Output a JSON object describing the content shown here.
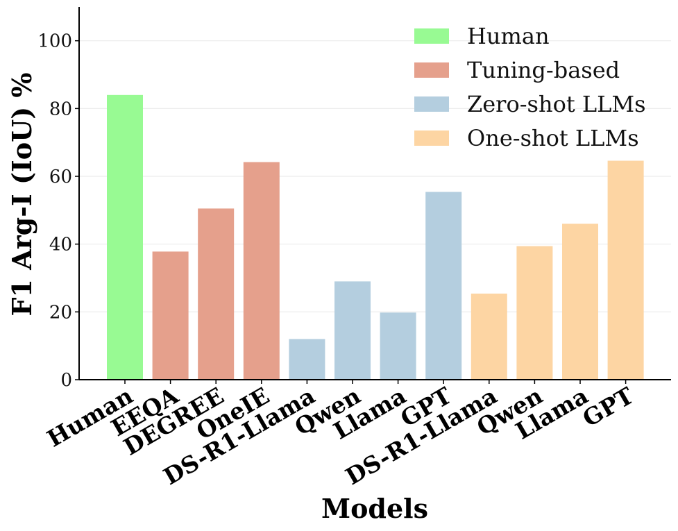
{
  "chart_data": {
    "type": "bar",
    "title": "",
    "xlabel": "Models",
    "ylabel": "F1 Arg-I (IoU) %",
    "ylim": [
      0,
      110
    ],
    "yticks": [
      0,
      20,
      40,
      60,
      80,
      100
    ],
    "categories": [
      "Human",
      "EEQA",
      "DEGREE",
      "OneIE",
      "DS-R1-Llama",
      "Qwen",
      "Llama",
      "GPT",
      "DS-R1-Llama",
      "Qwen",
      "Llama",
      "GPT"
    ],
    "values": [
      84,
      37.8,
      50.5,
      64.2,
      12,
      29,
      19.8,
      55.4,
      25.4,
      39.4,
      46,
      64.6
    ],
    "groups": [
      "Human",
      "Tuning-based",
      "Tuning-based",
      "Tuning-based",
      "Zero-shot LLMs",
      "Zero-shot LLMs",
      "Zero-shot LLMs",
      "Zero-shot LLMs",
      "One-shot LLMs",
      "One-shot LLMs",
      "One-shot LLMs",
      "One-shot LLMs"
    ],
    "legend": [
      {
        "label": "Human",
        "color": "#98fa93"
      },
      {
        "label": "Tuning-based",
        "color": "#e5a08c"
      },
      {
        "label": "Zero-shot LLMs",
        "color": "#b4cedf"
      },
      {
        "label": "One-shot LLMs",
        "color": "#fdd5a3"
      }
    ],
    "legend_position": "top-right",
    "grid": "horizontal"
  }
}
